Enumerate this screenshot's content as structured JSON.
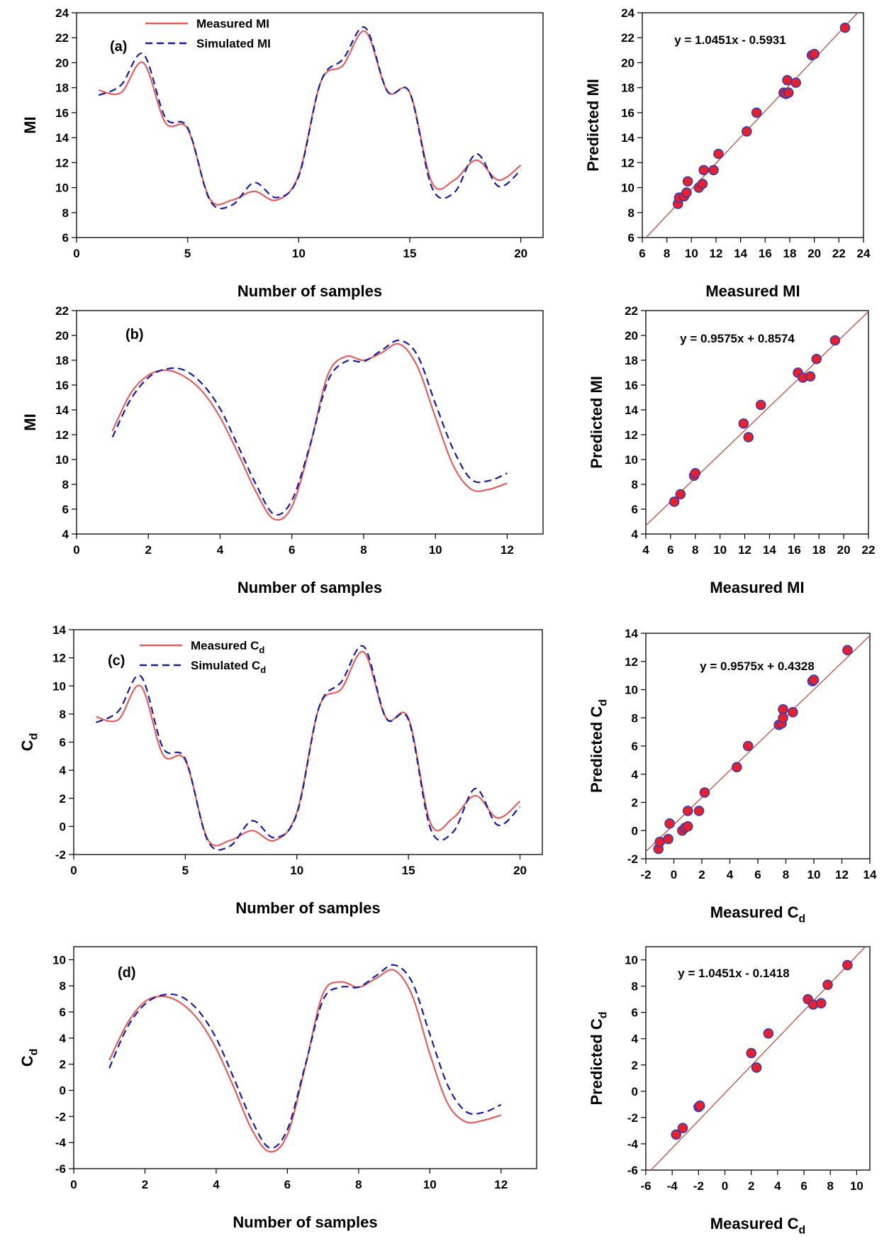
{
  "chart_data": [
    {
      "type": "line",
      "panel_label": "(a)",
      "xlabel": "Number of samples",
      "ylabel": "MI",
      "xlim": [
        0,
        21
      ],
      "ylim": [
        6,
        24
      ],
      "xticks": [
        0,
        5,
        10,
        15,
        20
      ],
      "yticks": [
        6,
        8,
        10,
        12,
        14,
        16,
        18,
        20,
        22,
        24
      ],
      "legend": "top-left",
      "series": [
        {
          "name": "Measured MI",
          "color": "#e06060",
          "style": "solid",
          "x": [
            1,
            2,
            3,
            4,
            5,
            6,
            7,
            8,
            9,
            10,
            11,
            12,
            13,
            14,
            15,
            16,
            17,
            18,
            19,
            20
          ],
          "values": [
            17.8,
            17.6,
            20.0,
            15.2,
            14.7,
            9.1,
            9.0,
            9.7,
            9.0,
            11.0,
            18.5,
            19.8,
            22.5,
            17.7,
            17.6,
            10.4,
            10.6,
            12.2,
            10.6,
            11.8
          ]
        },
        {
          "name": "Simulated MI",
          "color": "#1a1aa0",
          "style": "dashed",
          "x": [
            1,
            2,
            3,
            4,
            5,
            6,
            7,
            8,
            9,
            10,
            11,
            12,
            13,
            14,
            15,
            16,
            17,
            18,
            19,
            20
          ],
          "values": [
            17.4,
            18.2,
            20.7,
            15.6,
            14.8,
            9.0,
            8.6,
            10.4,
            9.2,
            10.9,
            18.5,
            20.3,
            22.8,
            17.7,
            17.6,
            10.0,
            9.6,
            12.7,
            10.1,
            11.4
          ]
        }
      ]
    },
    {
      "type": "scatter",
      "xlabel": "Measured MI",
      "ylabel": "Predicted MI",
      "xlim": [
        6,
        24
      ],
      "ylim": [
        6,
        24
      ],
      "xticks": [
        6,
        8,
        10,
        12,
        14,
        16,
        18,
        20,
        22,
        24
      ],
      "yticks": [
        6,
        8,
        10,
        12,
        14,
        16,
        18,
        20,
        22,
        24
      ],
      "equation": "y = 1.0451x - 0.5931",
      "trend": [
        1.0451,
        -0.5931
      ],
      "points": [
        [
          8.9,
          8.7
        ],
        [
          9.0,
          9.2
        ],
        [
          9.4,
          9.3
        ],
        [
          9.6,
          9.6
        ],
        [
          9.7,
          10.5
        ],
        [
          10.6,
          10.0
        ],
        [
          10.9,
          10.3
        ],
        [
          11.0,
          11.4
        ],
        [
          11.8,
          11.4
        ],
        [
          12.2,
          12.7
        ],
        [
          14.5,
          14.5
        ],
        [
          15.3,
          16.0
        ],
        [
          17.5,
          17.6
        ],
        [
          17.7,
          17.5
        ],
        [
          17.8,
          18.6
        ],
        [
          18.5,
          18.4
        ],
        [
          19.8,
          20.6
        ],
        [
          20.0,
          20.7
        ],
        [
          22.5,
          22.8
        ],
        [
          17.9,
          17.6
        ]
      ]
    },
    {
      "type": "line",
      "panel_label": "(b)",
      "xlabel": "Number of samples",
      "ylabel": "MI",
      "xlim": [
        0,
        13
      ],
      "ylim": [
        4,
        22
      ],
      "xticks": [
        0,
        2,
        4,
        6,
        8,
        10,
        12
      ],
      "yticks": [
        4,
        6,
        8,
        10,
        12,
        14,
        16,
        18,
        20,
        22
      ],
      "series": [
        {
          "name": "Measured MI",
          "color": "#e06060",
          "style": "solid",
          "x": [
            1,
            1.5,
            2,
            2.5,
            3,
            3.5,
            4,
            4.5,
            5,
            5.5,
            6,
            6.5,
            7,
            7.5,
            8,
            8.5,
            9,
            9.5,
            10,
            10.5,
            11,
            11.5,
            12
          ],
          "values": [
            12.3,
            15.3,
            16.8,
            17.2,
            16.7,
            15.5,
            13.4,
            10.5,
            7.4,
            5.2,
            6.2,
            11.0,
            16.8,
            18.3,
            18.0,
            18.6,
            19.3,
            17.5,
            13.4,
            9.5,
            7.6,
            7.6,
            8.1
          ]
        },
        {
          "name": "Simulated MI",
          "color": "#1a1aa0",
          "style": "dashed",
          "x": [
            1,
            1.5,
            2,
            2.5,
            3,
            3.5,
            4,
            4.5,
            5,
            5.5,
            6,
            6.5,
            7,
            7.5,
            8,
            8.5,
            9,
            9.5,
            10,
            10.5,
            11,
            11.5,
            12
          ],
          "values": [
            11.8,
            14.8,
            16.6,
            17.3,
            17.2,
            16.1,
            14.1,
            11.1,
            8.0,
            5.6,
            6.7,
            11.1,
            16.3,
            17.9,
            17.9,
            18.8,
            19.6,
            18.4,
            14.5,
            10.8,
            8.4,
            8.3,
            8.9
          ]
        }
      ]
    },
    {
      "type": "scatter",
      "xlabel": "Measured MI",
      "ylabel": "Predicted MI",
      "xlim": [
        4,
        22
      ],
      "ylim": [
        4,
        22
      ],
      "xticks": [
        4,
        6,
        8,
        10,
        12,
        14,
        16,
        18,
        20,
        22
      ],
      "yticks": [
        4,
        6,
        8,
        10,
        12,
        14,
        16,
        18,
        20,
        22
      ],
      "equation": "y = 0.9575x + 0.8574",
      "trend": [
        0.9575,
        0.8574
      ],
      "points": [
        [
          6.3,
          6.6
        ],
        [
          6.8,
          7.2
        ],
        [
          7.9,
          8.7
        ],
        [
          8.0,
          8.9
        ],
        [
          11.9,
          12.9
        ],
        [
          12.3,
          11.8
        ],
        [
          13.3,
          14.4
        ],
        [
          16.3,
          17.0
        ],
        [
          16.7,
          16.6
        ],
        [
          17.3,
          16.7
        ],
        [
          17.8,
          18.1
        ],
        [
          19.3,
          19.6
        ]
      ]
    },
    {
      "type": "line",
      "panel_label": "(c)",
      "xlabel": "Number of samples",
      "ylabel_main": "C",
      "ylabel_sub": "d",
      "xlim": [
        0,
        21
      ],
      "ylim": [
        -2,
        14
      ],
      "xticks": [
        0,
        5,
        10,
        15,
        20
      ],
      "yticks": [
        -2,
        0,
        2,
        4,
        6,
        8,
        10,
        12,
        14
      ],
      "legend": "top-left",
      "series": [
        {
          "name_main": "Measured C",
          "name_sub": "d",
          "color": "#e06060",
          "style": "solid",
          "x": [
            1,
            2,
            3,
            4,
            5,
            6,
            7,
            8,
            9,
            10,
            11,
            12,
            13,
            14,
            15,
            16,
            17,
            18,
            19,
            20
          ],
          "values": [
            7.8,
            7.6,
            10.0,
            5.1,
            4.7,
            -0.9,
            -1.0,
            -0.3,
            -1.0,
            1.0,
            8.5,
            9.8,
            12.4,
            7.7,
            7.7,
            0.2,
            0.6,
            2.2,
            0.6,
            1.8
          ]
        },
        {
          "name_main": "Simulated C",
          "name_sub": "d",
          "color": "#1a1aa0",
          "style": "dashed",
          "x": [
            1,
            2,
            3,
            4,
            5,
            6,
            7,
            8,
            9,
            10,
            11,
            12,
            13,
            14,
            15,
            16,
            17,
            18,
            19,
            20
          ],
          "values": [
            7.4,
            8.2,
            10.7,
            5.6,
            4.8,
            -1.0,
            -1.4,
            0.4,
            -0.8,
            0.9,
            8.5,
            10.3,
            12.8,
            7.7,
            7.6,
            -0.2,
            -0.4,
            2.7,
            0.1,
            1.4
          ]
        }
      ]
    },
    {
      "type": "scatter",
      "xlabel_main": "Measured C",
      "xlabel_sub": "d",
      "ylabel_main": "Predicted  C",
      "ylabel_sub": "d",
      "xlim": [
        -2,
        14
      ],
      "ylim": [
        -2,
        14
      ],
      "xticks": [
        -2,
        0,
        2,
        4,
        6,
        8,
        10,
        12,
        14
      ],
      "yticks": [
        -2,
        0,
        2,
        4,
        6,
        8,
        10,
        12,
        14
      ],
      "equation": "y = 0.9575x + 0.4328",
      "trend": [
        0.9575,
        0.4328
      ],
      "points": [
        [
          -1.1,
          -1.3
        ],
        [
          -1.0,
          -0.8
        ],
        [
          -0.4,
          -0.6
        ],
        [
          -0.3,
          0.5
        ],
        [
          0.6,
          0.0
        ],
        [
          0.8,
          0.2
        ],
        [
          1.0,
          0.3
        ],
        [
          1.0,
          1.4
        ],
        [
          1.8,
          1.4
        ],
        [
          2.2,
          2.7
        ],
        [
          4.5,
          4.5
        ],
        [
          5.3,
          6.0
        ],
        [
          7.5,
          7.5
        ],
        [
          7.7,
          7.6
        ],
        [
          7.8,
          8.6
        ],
        [
          8.5,
          8.4
        ],
        [
          9.9,
          10.6
        ],
        [
          10.0,
          10.7
        ],
        [
          12.4,
          12.8
        ],
        [
          7.8,
          8.0
        ]
      ]
    },
    {
      "type": "line",
      "panel_label": "(d)",
      "xlabel": "Number of samples",
      "ylabel_main": "C",
      "ylabel_sub": "d",
      "xlim": [
        0,
        13
      ],
      "ylim": [
        -6,
        11
      ],
      "xticks": [
        0,
        2,
        4,
        6,
        8,
        10,
        12
      ],
      "yticks": [
        -6,
        -4,
        -2,
        0,
        2,
        4,
        6,
        8,
        10
      ],
      "series": [
        {
          "name": "Measured Cd",
          "color": "#e06060",
          "style": "solid",
          "x": [
            1,
            1.5,
            2,
            2.5,
            3,
            3.5,
            4,
            4.5,
            5,
            5.5,
            6,
            6.5,
            7,
            7.5,
            8,
            8.5,
            9,
            9.5,
            10,
            10.5,
            11,
            11.5,
            12
          ],
          "values": [
            2.3,
            5.1,
            6.8,
            7.2,
            6.7,
            5.4,
            3.2,
            0.2,
            -3.0,
            -4.7,
            -3.4,
            1.8,
            7.4,
            8.3,
            7.9,
            8.6,
            9.2,
            7.3,
            2.8,
            -1.0,
            -2.4,
            -2.3,
            -1.9
          ]
        },
        {
          "name": "Simulated Cd",
          "color": "#1a1aa0",
          "style": "dashed",
          "x": [
            1,
            1.5,
            2,
            2.5,
            3,
            3.5,
            4,
            4.5,
            5,
            5.5,
            6,
            6.5,
            7,
            7.5,
            8,
            8.5,
            9,
            9.5,
            10,
            10.5,
            11,
            11.5,
            12
          ],
          "values": [
            1.7,
            4.8,
            6.6,
            7.3,
            7.2,
            6.1,
            4.0,
            0.9,
            -2.3,
            -4.4,
            -3.0,
            1.9,
            6.9,
            7.9,
            7.9,
            8.8,
            9.6,
            8.3,
            4.3,
            0.4,
            -1.6,
            -1.7,
            -1.1
          ]
        }
      ]
    },
    {
      "type": "scatter",
      "xlabel_main": "Measured C",
      "xlabel_sub": "d",
      "ylabel_main": "Predicted  C",
      "ylabel_sub": "d",
      "xlim": [
        -6,
        11
      ],
      "ylim": [
        -6,
        11
      ],
      "xticks": [
        -6,
        -4,
        -2,
        0,
        2,
        4,
        6,
        8,
        10
      ],
      "yticks": [
        -6,
        -4,
        -2,
        0,
        2,
        4,
        6,
        8,
        10
      ],
      "equation": "y = 1.0451x - 0.1418",
      "trend": [
        1.0451,
        -0.1418
      ],
      "points": [
        [
          -3.7,
          -3.3
        ],
        [
          -3.2,
          -2.8
        ],
        [
          -2.0,
          -1.2
        ],
        [
          -1.9,
          -1.1
        ],
        [
          2.0,
          2.9
        ],
        [
          2.4,
          1.8
        ],
        [
          3.3,
          4.4
        ],
        [
          6.3,
          7.0
        ],
        [
          6.7,
          6.6
        ],
        [
          7.3,
          6.7
        ],
        [
          7.8,
          8.1
        ],
        [
          9.3,
          9.6
        ]
      ]
    }
  ]
}
